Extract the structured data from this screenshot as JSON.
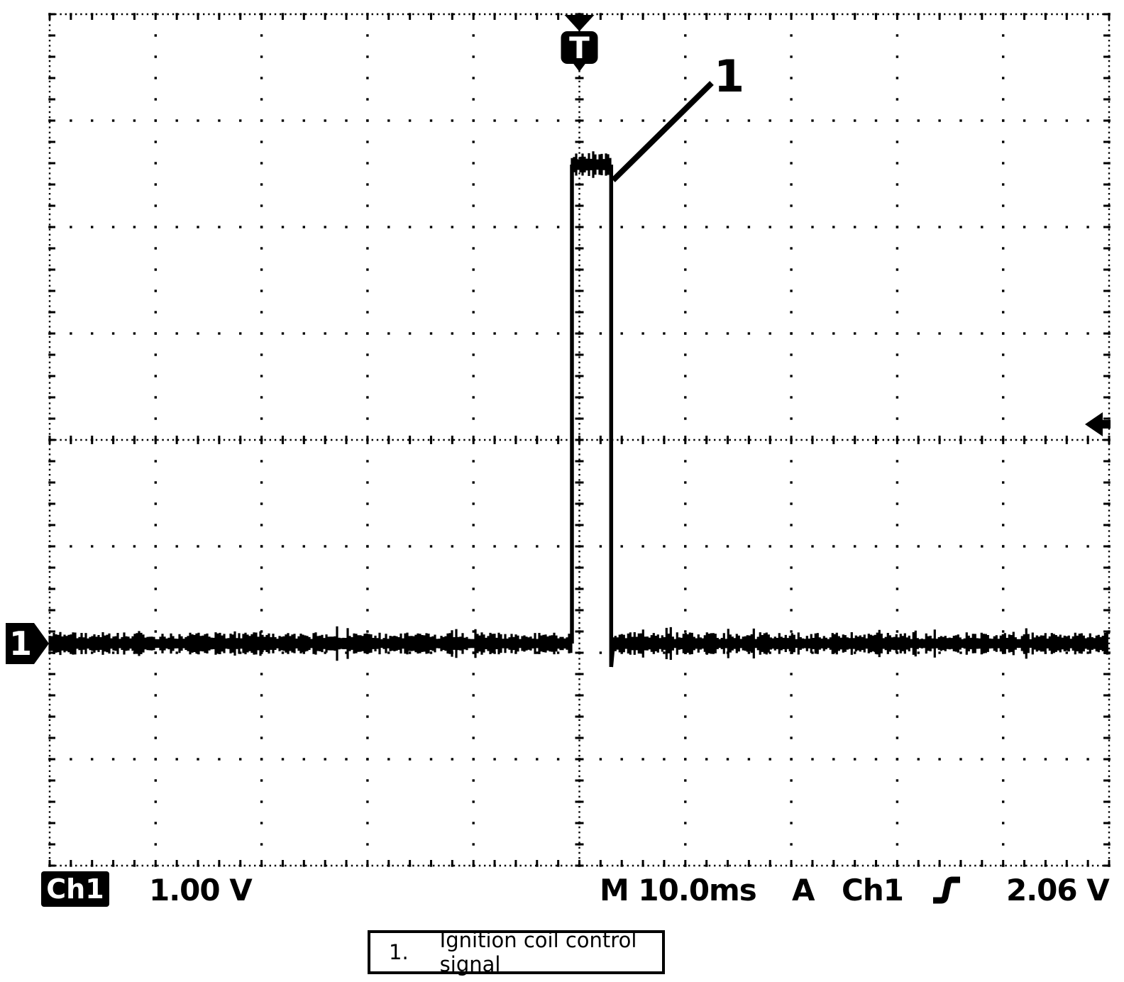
{
  "colors": {
    "foreground": "#000000",
    "background": "#ffffff"
  },
  "scope": {
    "trigger_marker_label": "T",
    "channel_marker_label": "1",
    "callout_label": "1"
  },
  "readout": {
    "channel_badge": "Ch1",
    "vertical_scale": "1.00 V",
    "timebase": "M 10.0ms",
    "acquisition_mode": "A",
    "trigger_source": "Ch1",
    "trigger_slope_icon": "rising-edge",
    "trigger_level": "2.06 V"
  },
  "caption": {
    "number": "1.",
    "text": "Ignition coil control signal"
  },
  "chart_data": {
    "type": "line",
    "title": "Oscilloscope capture — ignition coil control signal (Ch1)",
    "xlabel": "Time, 10.0 ms/div",
    "ylabel": "Voltage, 1.00 V/div",
    "x_divisions": 10,
    "y_divisions": 8,
    "ms_per_div": 10.0,
    "volts_per_div": 1.0,
    "grid": "dotted graticule, minor ticks every 1/5 division on edges and center axes",
    "legend_position": "none",
    "ground_ref_div_below_center": 1.913,
    "series": [
      {
        "name": "Ch1",
        "points_t_ms_v": [
          [
            -50,
            0
          ],
          [
            -0.7,
            0
          ],
          [
            -0.7,
            4.5
          ],
          [
            3.0,
            4.5
          ],
          [
            3.0,
            -0.22
          ],
          [
            3.2,
            0
          ],
          [
            50,
            0
          ]
        ],
        "noise_vpp_v": 0.2,
        "description": "Flat noisy 0 V baseline with a single ~4.5 V pulse about 3.7 ms wide beginning at the trigger point"
      }
    ],
    "trigger": {
      "source": "Ch1",
      "level_v": 2.06,
      "slope": "rising",
      "position_ms_from_center": 0
    }
  }
}
